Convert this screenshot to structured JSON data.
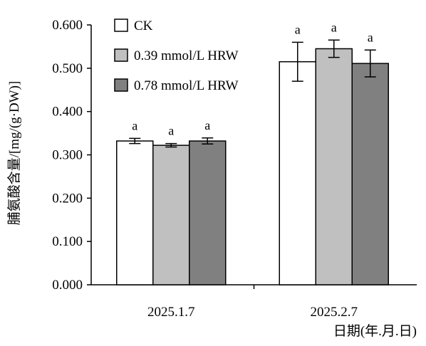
{
  "chart_data": {
    "type": "bar",
    "ylabel": "脯氨酸含量/[mg/(g·DW)]",
    "xlabel": "日期(年.月.日)",
    "categories": [
      "2025.1.7",
      "2025.2.7"
    ],
    "ylim": [
      0,
      0.6
    ],
    "yticks": [
      "0.000",
      "0.100",
      "0.200",
      "0.300",
      "0.400",
      "0.500",
      "0.600"
    ],
    "legend_position": "top-left",
    "series": [
      {
        "name": "CK",
        "color": "#ffffff",
        "values": [
          0.332,
          0.515
        ],
        "errors": [
          0.006,
          0.045
        ],
        "labels": [
          "a",
          "a"
        ]
      },
      {
        "name": "0.39 mmol/L HRW",
        "color": "#c0c0c0",
        "values": [
          0.322,
          0.545
        ],
        "errors": [
          0.004,
          0.02
        ],
        "labels": [
          "a",
          "a"
        ]
      },
      {
        "name": "0.78 mmol/L HRW",
        "color": "#808080",
        "values": [
          0.332,
          0.511
        ],
        "errors": [
          0.007,
          0.031
        ],
        "labels": [
          "a",
          "a"
        ]
      }
    ]
  }
}
